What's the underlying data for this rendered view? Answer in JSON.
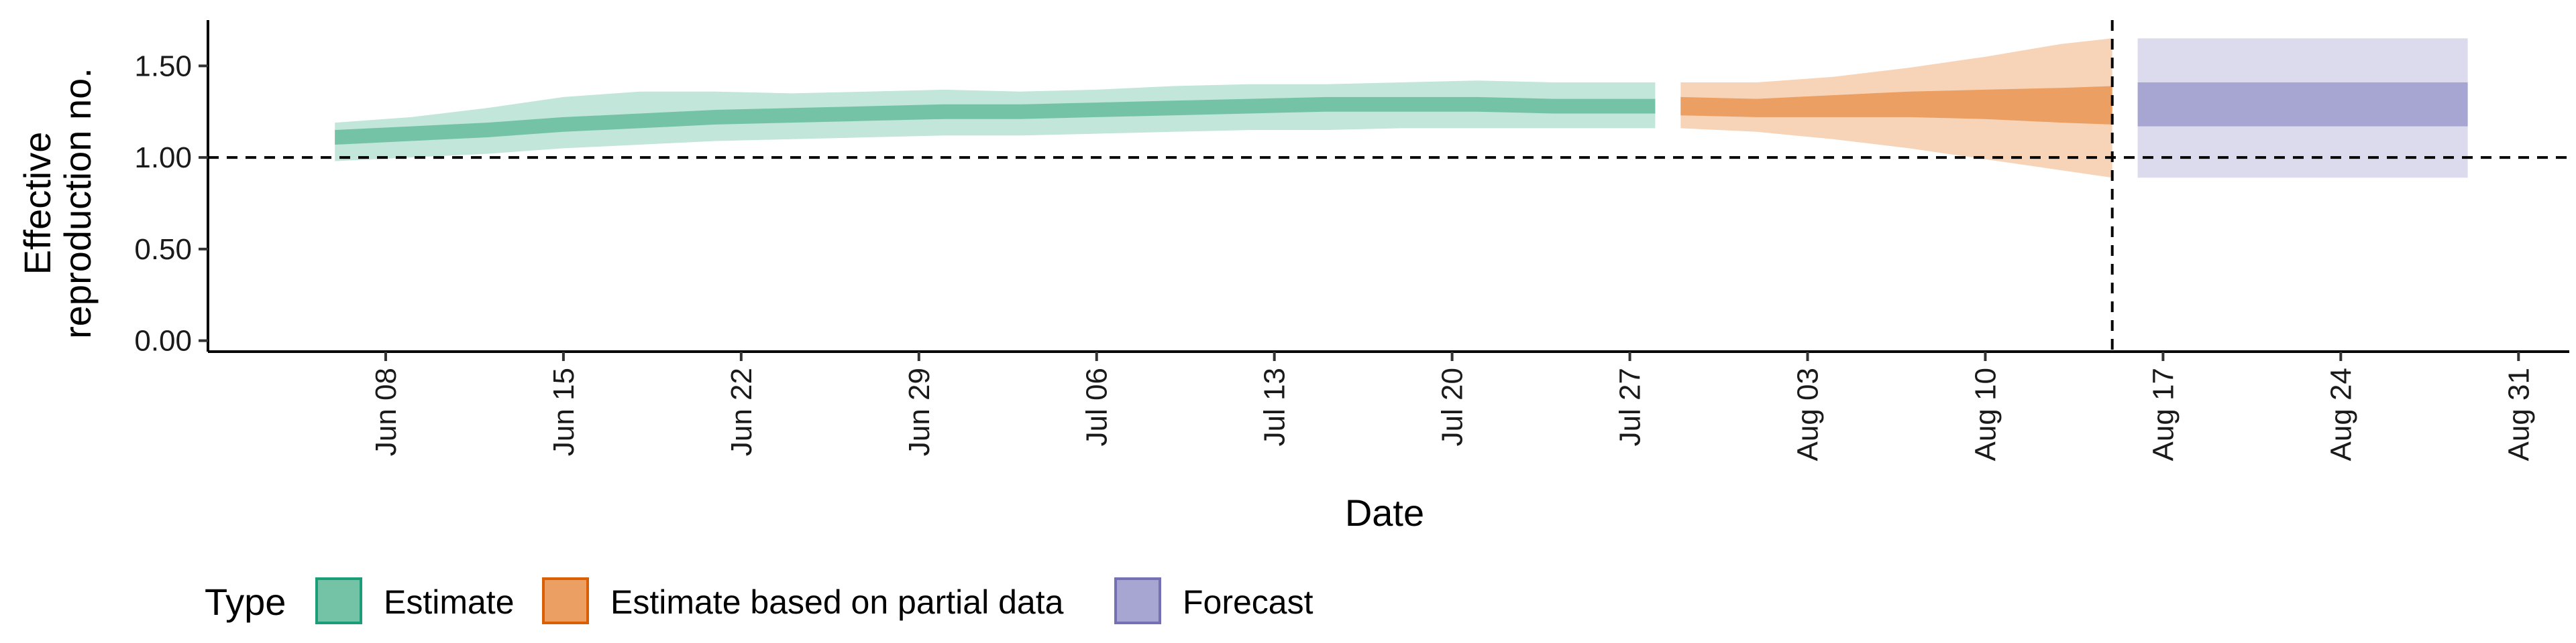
{
  "chart_data": {
    "type": "area",
    "title": "",
    "xlabel": "Date",
    "ylabel": [
      "Effective",
      "reproduction no."
    ],
    "x_range": [
      "2020-06-01",
      "2020-09-02"
    ],
    "ylim": [
      -0.06,
      1.75
    ],
    "y_ticks": [
      {
        "value": 0.0,
        "label": "0.00"
      },
      {
        "value": 0.5,
        "label": "0.50"
      },
      {
        "value": 1.0,
        "label": "1.00"
      },
      {
        "value": 1.5,
        "label": "1.50"
      }
    ],
    "x_ticks": [
      {
        "date": "2020-06-08",
        "label": "Jun 08"
      },
      {
        "date": "2020-06-15",
        "label": "Jun 15"
      },
      {
        "date": "2020-06-22",
        "label": "Jun 22"
      },
      {
        "date": "2020-06-29",
        "label": "Jun 29"
      },
      {
        "date": "2020-07-06",
        "label": "Jul 06"
      },
      {
        "date": "2020-07-13",
        "label": "Jul 13"
      },
      {
        "date": "2020-07-20",
        "label": "Jul 20"
      },
      {
        "date": "2020-07-27",
        "label": "Jul 27"
      },
      {
        "date": "2020-08-03",
        "label": "Aug 03"
      },
      {
        "date": "2020-08-10",
        "label": "Aug 10"
      },
      {
        "date": "2020-08-17",
        "label": "Aug 17"
      },
      {
        "date": "2020-08-24",
        "label": "Aug 24"
      },
      {
        "date": "2020-08-31",
        "label": "Aug 31"
      }
    ],
    "reference_lines": [
      {
        "axis": "y",
        "value": 1.0,
        "style": "dashed"
      },
      {
        "axis": "x",
        "date": "2020-08-15",
        "style": "dashed"
      }
    ],
    "grid": false,
    "legend": {
      "title": "Type",
      "placement": "bottom-left",
      "items": [
        {
          "label": "Estimate",
          "fill": "#74c3a7",
          "stroke": "#1b9e77"
        },
        {
          "label": "Estimate based on partial data",
          "fill": "#eb9f62",
          "stroke": "#d95f02"
        },
        {
          "label": "Forecast",
          "fill": "#a7a5d2",
          "stroke": "#7570b3"
        }
      ]
    },
    "series": [
      {
        "name": "Estimate",
        "color_outer": "#c2e6d9",
        "color_inner": "#74c3a7",
        "points": [
          {
            "date": "2020-06-06",
            "lo90": 0.98,
            "lo50": 1.07,
            "hi50": 1.15,
            "hi90": 1.19
          },
          {
            "date": "2020-06-09",
            "lo90": 1.0,
            "lo50": 1.09,
            "hi50": 1.17,
            "hi90": 1.22
          },
          {
            "date": "2020-06-12",
            "lo90": 1.02,
            "lo50": 1.11,
            "hi50": 1.19,
            "hi90": 1.27
          },
          {
            "date": "2020-06-15",
            "lo90": 1.05,
            "lo50": 1.14,
            "hi50": 1.22,
            "hi90": 1.33
          },
          {
            "date": "2020-06-18",
            "lo90": 1.07,
            "lo50": 1.16,
            "hi50": 1.24,
            "hi90": 1.36
          },
          {
            "date": "2020-06-21",
            "lo90": 1.09,
            "lo50": 1.18,
            "hi50": 1.26,
            "hi90": 1.36
          },
          {
            "date": "2020-06-24",
            "lo90": 1.1,
            "lo50": 1.19,
            "hi50": 1.27,
            "hi90": 1.35
          },
          {
            "date": "2020-06-27",
            "lo90": 1.11,
            "lo50": 1.2,
            "hi50": 1.28,
            "hi90": 1.36
          },
          {
            "date": "2020-06-30",
            "lo90": 1.12,
            "lo50": 1.21,
            "hi50": 1.29,
            "hi90": 1.37
          },
          {
            "date": "2020-07-03",
            "lo90": 1.12,
            "lo50": 1.21,
            "hi50": 1.29,
            "hi90": 1.36
          },
          {
            "date": "2020-07-06",
            "lo90": 1.13,
            "lo50": 1.22,
            "hi50": 1.3,
            "hi90": 1.37
          },
          {
            "date": "2020-07-09",
            "lo90": 1.14,
            "lo50": 1.23,
            "hi50": 1.31,
            "hi90": 1.39
          },
          {
            "date": "2020-07-12",
            "lo90": 1.15,
            "lo50": 1.24,
            "hi50": 1.32,
            "hi90": 1.4
          },
          {
            "date": "2020-07-15",
            "lo90": 1.15,
            "lo50": 1.25,
            "hi50": 1.33,
            "hi90": 1.4
          },
          {
            "date": "2020-07-18",
            "lo90": 1.16,
            "lo50": 1.25,
            "hi50": 1.33,
            "hi90": 1.41
          },
          {
            "date": "2020-07-21",
            "lo90": 1.16,
            "lo50": 1.25,
            "hi50": 1.33,
            "hi90": 1.42
          },
          {
            "date": "2020-07-24",
            "lo90": 1.16,
            "lo50": 1.24,
            "hi50": 1.32,
            "hi90": 1.41
          },
          {
            "date": "2020-07-28",
            "lo90": 1.16,
            "lo50": 1.24,
            "hi50": 1.32,
            "hi90": 1.41
          }
        ]
      },
      {
        "name": "Estimate based on partial data",
        "color_outer": "#f7d3b8",
        "color_inner": "#eb9f62",
        "points": [
          {
            "date": "2020-07-29",
            "lo90": 1.16,
            "lo50": 1.23,
            "hi50": 1.33,
            "hi90": 1.41
          },
          {
            "date": "2020-08-01",
            "lo90": 1.14,
            "lo50": 1.22,
            "hi50": 1.32,
            "hi90": 1.41
          },
          {
            "date": "2020-08-04",
            "lo90": 1.1,
            "lo50": 1.22,
            "hi50": 1.34,
            "hi90": 1.44
          },
          {
            "date": "2020-08-07",
            "lo90": 1.05,
            "lo50": 1.22,
            "hi50": 1.36,
            "hi90": 1.49
          },
          {
            "date": "2020-08-10",
            "lo90": 0.99,
            "lo50": 1.21,
            "hi50": 1.37,
            "hi90": 1.55
          },
          {
            "date": "2020-08-13",
            "lo90": 0.93,
            "lo50": 1.19,
            "hi50": 1.38,
            "hi90": 1.62
          },
          {
            "date": "2020-08-15",
            "lo90": 0.89,
            "lo50": 1.18,
            "hi50": 1.39,
            "hi90": 1.65
          }
        ]
      },
      {
        "name": "Forecast",
        "color_outer": "#dcdbee",
        "color_inner": "#a7a5d2",
        "points": [
          {
            "date": "2020-08-16",
            "lo90": 0.89,
            "lo50": 1.17,
            "hi50": 1.41,
            "hi90": 1.65
          },
          {
            "date": "2020-08-29",
            "lo90": 0.89,
            "lo50": 1.17,
            "hi50": 1.41,
            "hi90": 1.65
          }
        ]
      }
    ]
  }
}
